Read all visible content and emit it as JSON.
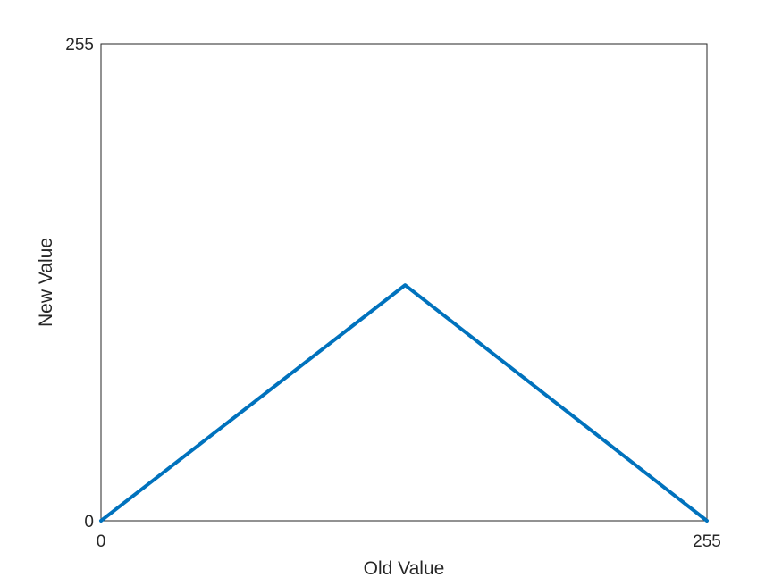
{
  "chart_data": {
    "type": "line",
    "title": "",
    "xlabel": "Old Value",
    "ylabel": "New Value",
    "xlim": [
      0,
      255
    ],
    "ylim": [
      0,
      255
    ],
    "xticks": [
      "0",
      "255"
    ],
    "yticks": [
      "0",
      "255"
    ],
    "grid": false,
    "series": [
      {
        "x": [
          0,
          128,
          255
        ],
        "y": [
          0,
          126,
          0
        ],
        "color": "#0072BD"
      }
    ]
  }
}
